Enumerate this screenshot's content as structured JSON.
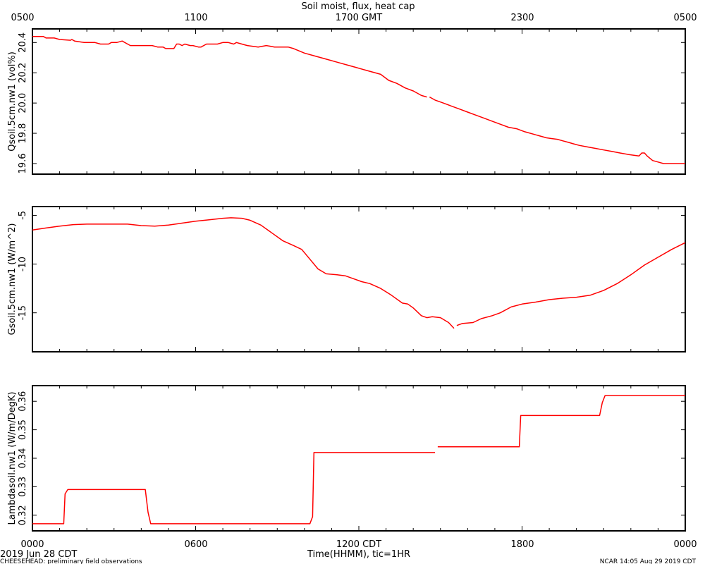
{
  "title": "Soil moist, flux, heat cap",
  "top_axis": {
    "label": "",
    "ticks": [
      "0500",
      "1100",
      "1700 GMT",
      "2300",
      "0500"
    ]
  },
  "bottom_axis": {
    "label": "Time(HHMM), tic=1HR",
    "ticks": [
      "0000",
      "0600",
      "1200 CDT",
      "1800",
      "0000"
    ]
  },
  "footer": {
    "date": "2019 Jun 28 CDT",
    "project": "CHEESEHEAD: preliminary field observations",
    "stamp": "NCAR 14:05 Aug 29 2019 CDT"
  },
  "colors": {
    "series": "#ff0000",
    "axes": "#000000"
  },
  "chart_data": [
    {
      "type": "line",
      "ylabel": "Qsoil.5cm.nw1 (vol%)",
      "xlim": [
        0,
        24
      ],
      "ylim": [
        19.53,
        20.49
      ],
      "yticks": [
        19.6,
        19.8,
        20.0,
        20.2,
        20.4
      ],
      "ytick_labels": [
        "19.6",
        "19.8",
        "20.0",
        "20.2",
        "20.4"
      ],
      "series": [
        {
          "name": "",
          "segments": [
            [
              [
                0,
                20.44
              ],
              [
                0.4,
                20.44
              ],
              [
                0.5,
                20.43
              ],
              [
                0.8,
                20.43
              ],
              [
                1.0,
                20.42
              ],
              [
                1.4,
                20.415
              ],
              [
                1.45,
                20.42
              ],
              [
                1.55,
                20.41
              ],
              [
                1.9,
                20.4
              ],
              [
                2.3,
                20.4
              ],
              [
                2.5,
                20.39
              ],
              [
                2.8,
                20.39
              ],
              [
                2.9,
                20.4
              ],
              [
                3.1,
                20.4
              ],
              [
                3.3,
                20.41
              ],
              [
                3.5,
                20.39
              ],
              [
                3.6,
                20.38
              ],
              [
                4.4,
                20.38
              ],
              [
                4.6,
                20.37
              ],
              [
                4.8,
                20.37
              ],
              [
                4.9,
                20.36
              ],
              [
                5.2,
                20.36
              ],
              [
                5.3,
                20.39
              ],
              [
                5.4,
                20.39
              ],
              [
                5.5,
                20.38
              ],
              [
                5.6,
                20.39
              ],
              [
                5.8,
                20.38
              ],
              [
                5.9,
                20.38
              ],
              [
                6.1,
                20.37
              ],
              [
                6.2,
                20.37
              ],
              [
                6.4,
                20.39
              ],
              [
                6.8,
                20.39
              ],
              [
                7.0,
                20.4
              ],
              [
                7.2,
                20.4
              ],
              [
                7.4,
                20.39
              ],
              [
                7.5,
                20.4
              ],
              [
                7.7,
                20.39
              ],
              [
                7.9,
                20.38
              ],
              [
                8.3,
                20.37
              ],
              [
                8.6,
                20.38
              ],
              [
                8.9,
                20.37
              ],
              [
                9.4,
                20.37
              ],
              [
                9.6,
                20.36
              ],
              [
                10.0,
                20.33
              ],
              [
                10.4,
                20.31
              ],
              [
                10.8,
                20.29
              ],
              [
                11.2,
                20.27
              ],
              [
                11.6,
                20.25
              ],
              [
                11.8,
                20.24
              ],
              [
                12.0,
                20.23
              ],
              [
                12.4,
                20.21
              ],
              [
                12.8,
                20.19
              ],
              [
                13.1,
                20.15
              ],
              [
                13.4,
                20.13
              ],
              [
                13.7,
                20.1
              ],
              [
                14.0,
                20.08
              ],
              [
                14.3,
                20.05
              ],
              [
                14.5,
                20.04
              ]
            ],
            [
              [
                14.6,
                20.04
              ],
              [
                14.8,
                20.02
              ],
              [
                15.1,
                20.0
              ],
              [
                15.4,
                19.98
              ],
              [
                15.7,
                19.96
              ],
              [
                16.0,
                19.94
              ],
              [
                16.3,
                19.92
              ],
              [
                16.6,
                19.9
              ],
              [
                16.9,
                19.88
              ],
              [
                17.2,
                19.86
              ],
              [
                17.5,
                19.84
              ],
              [
                17.8,
                19.83
              ],
              [
                18.1,
                19.81
              ],
              [
                18.5,
                19.79
              ],
              [
                18.9,
                19.77
              ],
              [
                19.1,
                19.765
              ],
              [
                19.3,
                19.76
              ],
              [
                19.5,
                19.75
              ],
              [
                19.7,
                19.74
              ],
              [
                19.9,
                19.73
              ],
              [
                20.1,
                19.72
              ],
              [
                20.4,
                19.71
              ],
              [
                20.7,
                19.7
              ],
              [
                21.0,
                19.69
              ],
              [
                21.3,
                19.68
              ],
              [
                21.6,
                19.67
              ],
              [
                21.9,
                19.66
              ],
              [
                22.3,
                19.65
              ],
              [
                22.4,
                19.67
              ],
              [
                22.5,
                19.67
              ],
              [
                22.6,
                19.65
              ],
              [
                22.8,
                19.62
              ],
              [
                23.0,
                19.61
              ],
              [
                23.2,
                19.6
              ],
              [
                24.0,
                19.6
              ]
            ]
          ]
        }
      ]
    },
    {
      "type": "line",
      "ylabel": "Gsoil.5cm.nw1 (W/m^2)",
      "xlim": [
        0,
        24
      ],
      "ylim": [
        -19.0,
        -4.1
      ],
      "yticks": [
        -15,
        -10,
        -5
      ],
      "ytick_labels": [
        "-15",
        "-10",
        "-5"
      ],
      "series": [
        {
          "name": "",
          "segments": [
            [
              [
                0,
                -6.5
              ],
              [
                0.5,
                -6.3
              ],
              [
                1.0,
                -6.1
              ],
              [
                1.5,
                -5.95
              ],
              [
                2.0,
                -5.9
              ],
              [
                3.5,
                -5.9
              ],
              [
                4.0,
                -6.05
              ],
              [
                4.5,
                -6.1
              ],
              [
                5.0,
                -6.0
              ],
              [
                5.5,
                -5.8
              ],
              [
                6.0,
                -5.6
              ],
              [
                6.5,
                -5.45
              ],
              [
                7.0,
                -5.3
              ],
              [
                7.3,
                -5.25
              ],
              [
                7.7,
                -5.3
              ],
              [
                8.0,
                -5.5
              ],
              [
                8.4,
                -6.0
              ],
              [
                8.8,
                -6.8
              ],
              [
                9.2,
                -7.6
              ],
              [
                9.6,
                -8.1
              ],
              [
                9.9,
                -8.5
              ],
              [
                10.2,
                -9.5
              ],
              [
                10.5,
                -10.5
              ],
              [
                10.8,
                -11.0
              ],
              [
                11.2,
                -11.1
              ],
              [
                11.5,
                -11.2
              ],
              [
                11.8,
                -11.5
              ],
              [
                12.1,
                -11.8
              ],
              [
                12.4,
                -12.0
              ],
              [
                12.8,
                -12.5
              ],
              [
                13.2,
                -13.2
              ],
              [
                13.6,
                -14.0
              ],
              [
                13.8,
                -14.1
              ],
              [
                14.0,
                -14.5
              ],
              [
                14.3,
                -15.3
              ],
              [
                14.5,
                -15.5
              ],
              [
                14.7,
                -15.4
              ],
              [
                15.0,
                -15.5
              ],
              [
                15.3,
                -16.0
              ],
              [
                15.5,
                -16.6
              ]
            ],
            [
              [
                15.6,
                -16.3
              ],
              [
                15.8,
                -16.1
              ],
              [
                16.2,
                -16.0
              ],
              [
                16.5,
                -15.6
              ],
              [
                16.9,
                -15.3
              ],
              [
                17.2,
                -15.0
              ],
              [
                17.6,
                -14.4
              ],
              [
                18.0,
                -14.1
              ],
              [
                18.5,
                -13.9
              ],
              [
                19.0,
                -13.65
              ],
              [
                19.5,
                -13.5
              ],
              [
                20.0,
                -13.4
              ],
              [
                20.5,
                -13.2
              ],
              [
                21.0,
                -12.7
              ],
              [
                21.5,
                -12.0
              ],
              [
                22.0,
                -11.1
              ],
              [
                22.5,
                -10.1
              ],
              [
                23.0,
                -9.3
              ],
              [
                23.5,
                -8.5
              ],
              [
                24.0,
                -7.8
              ]
            ]
          ]
        }
      ]
    },
    {
      "type": "line",
      "ylabel": "Lambdasoil.nw1 (W/m/DegK)",
      "xlim": [
        0,
        24
      ],
      "ylim": [
        0.3145,
        0.3655
      ],
      "yticks": [
        0.32,
        0.33,
        0.34,
        0.35,
        0.36
      ],
      "ytick_labels": [
        "0.32",
        "0.33",
        "0.34",
        "0.35",
        "0.36"
      ],
      "series": [
        {
          "name": "",
          "segments": [
            [
              [
                0,
                0.317
              ],
              [
                1.15,
                0.317
              ],
              [
                1.2,
                0.3275
              ],
              [
                1.3,
                0.329
              ],
              [
                4.15,
                0.329
              ],
              [
                4.25,
                0.321
              ],
              [
                4.35,
                0.317
              ],
              [
                10.2,
                0.317
              ],
              [
                10.3,
                0.3195
              ],
              [
                10.35,
                0.342
              ],
              [
                14.8,
                0.342
              ]
            ],
            [
              [
                14.9,
                0.344
              ],
              [
                17.9,
                0.344
              ],
              [
                17.95,
                0.355
              ],
              [
                20.85,
                0.355
              ],
              [
                20.95,
                0.3595
              ],
              [
                21.05,
                0.362
              ],
              [
                24.0,
                0.362
              ]
            ]
          ]
        }
      ]
    }
  ]
}
